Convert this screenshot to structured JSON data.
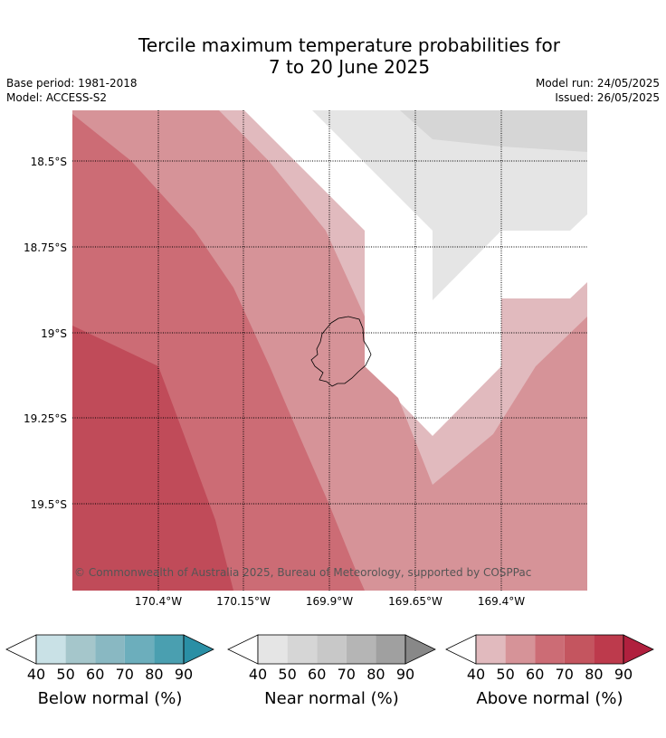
{
  "title_line1": "Tercile maximum temperature probabilities for",
  "title_line2": "7 to 20 June 2025",
  "meta": {
    "base_period": "Base period: 1981-2018",
    "model": "Model: ACCESS-S2",
    "model_run": "Model run: 24/05/2025",
    "issued": "Issued: 26/05/2025"
  },
  "map": {
    "lat_labels": [
      "18.5°S",
      "18.75°S",
      "19°S",
      "19.25°S",
      "19.5°S"
    ],
    "lon_labels": [
      "170.4°W",
      "170.15°W",
      "169.9°W",
      "169.65°W",
      "169.4°W"
    ],
    "copyright": "© Commonwealth of Australia 2025, Bureau of Meteorology, supported by COSPPac"
  },
  "legend": {
    "ticks": [
      "40",
      "50",
      "60",
      "70",
      "80",
      "90"
    ],
    "below": {
      "title": "Below normal (%)",
      "colors": [
        "#c9e1e6",
        "#a5c6cb",
        "#89b8c2",
        "#6caebc",
        "#4a9fb0",
        "#2a8fa5"
      ]
    },
    "near": {
      "title": "Near normal (%)",
      "colors": [
        "#e5e5e5",
        "#d6d6d6",
        "#c8c8c8",
        "#b5b5b5",
        "#a0a0a0",
        "#888888"
      ]
    },
    "above": {
      "title": "Above normal (%)",
      "colors": [
        "#e1babe",
        "#d69398",
        "#cc6c75",
        "#c4555f",
        "#bd3a4c",
        "#b0203e"
      ]
    }
  }
}
